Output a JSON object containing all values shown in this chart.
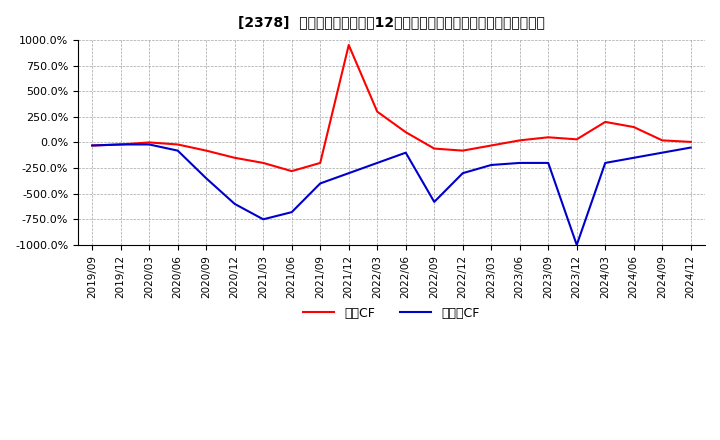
{
  "title": "[2378]  キャッシュフローの12か月移動合計の対前年同期増減率の推移",
  "ylim": [
    -1000,
    1000
  ],
  "yticks": [
    1000,
    750,
    500,
    250,
    0,
    -250,
    -500,
    -750,
    -1000
  ],
  "background_color": "#ffffff",
  "plot_background": "#ffffff",
  "legend_labels": [
    "営業CF",
    "フリーCF"
  ],
  "line_color_operating": "#ff0000",
  "line_color_free": "#0000cc",
  "x_labels": [
    "2019/09",
    "2019/12",
    "2020/03",
    "2020/06",
    "2020/09",
    "2020/12",
    "2021/03",
    "2021/06",
    "2021/09",
    "2021/12",
    "2022/03",
    "2022/06",
    "2022/09",
    "2022/12",
    "2023/03",
    "2023/06",
    "2023/09",
    "2023/12",
    "2024/03",
    "2024/06",
    "2024/09",
    "2024/12"
  ],
  "operating_cf": [
    -30,
    -20,
    0,
    -20,
    -80,
    -150,
    -200,
    -280,
    -200,
    950,
    300,
    100,
    -60,
    -80,
    -30,
    20,
    50,
    30,
    200,
    150,
    20,
    5
  ],
  "free_cf": [
    -30,
    -20,
    -20,
    -80,
    -350,
    -600,
    -750,
    -680,
    -400,
    -300,
    -200,
    -100,
    -580,
    -300,
    -220,
    -200,
    -200,
    -1000,
    -200,
    -150,
    -100,
    -50
  ]
}
